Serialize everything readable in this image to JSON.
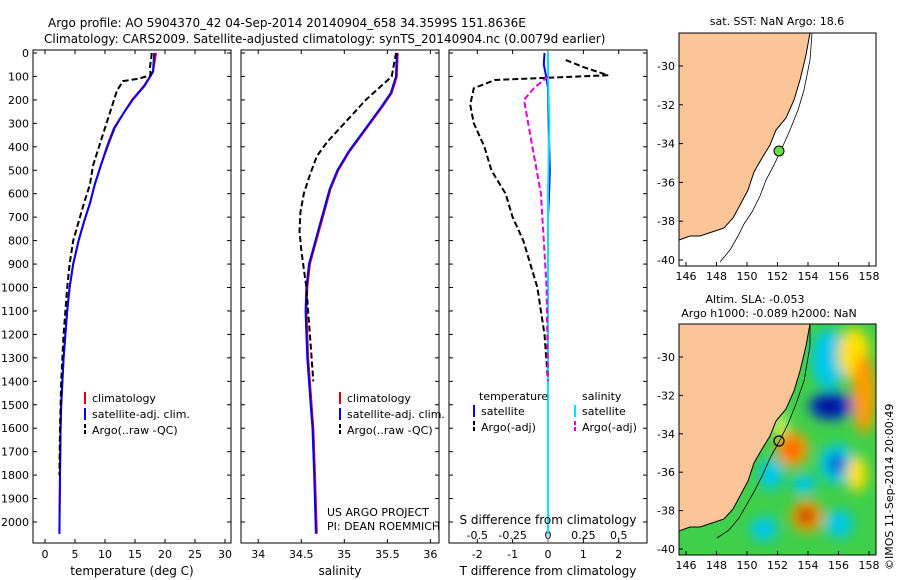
{
  "header": {
    "line1": "Argo profile: AO 5904370_42 04-Sep-2014 20140904_658 34.3599S 151.8636E",
    "line2": "Climatology: CARS2009. Satellite-adjusted climatology: synTS_20140904.nc (0.0079d earlier)"
  },
  "colors": {
    "climatology": "#e00000",
    "satellite": "#0000ff",
    "argo": "#000000",
    "salinity_sat": "#00e5ff",
    "salinity_argo": "#e000e0",
    "land": "#fbc597",
    "ocean": "#ffffff"
  },
  "depth_axis": {
    "ticks": [
      "0",
      "100",
      "200",
      "300",
      "400",
      "500",
      "600",
      "700",
      "800",
      "900",
      "1000",
      "1100",
      "1200",
      "1300",
      "1400",
      "1500",
      "1600",
      "1700",
      "1800",
      "1900",
      "2000"
    ]
  },
  "panels": {
    "temperature": {
      "xlabel": "temperature (deg C)",
      "ticks": [
        "0",
        "5",
        "10",
        "15",
        "20",
        "25",
        "30"
      ],
      "legend": [
        "climatology",
        "satellite-adj. clim.",
        "Argo(..raw -QC)"
      ]
    },
    "salinity": {
      "xlabel": "salinity",
      "ticks": [
        "34",
        "34.5",
        "35",
        "35.5",
        "36"
      ],
      "legend": [
        "climatology",
        "satellite-adj. clim.",
        "Argo(..raw -QC)"
      ],
      "credit1": "US ARGO PROJECT",
      "credit2": "PI: DEAN ROEMMICH"
    },
    "difference": {
      "xlabel": "T difference from climatology",
      "toplabel": "S difference from climatology",
      "ticks_t": [
        "-2",
        "-1",
        "0",
        "1",
        "2"
      ],
      "ticks_s": [
        "-0.5",
        "-0.25",
        "0",
        "0.25",
        "0.5"
      ],
      "legend_t_title": "temperature",
      "legend_t": [
        "satellite",
        "Argo(-adj)"
      ],
      "legend_s_title": "salinity",
      "legend_s": [
        "satellite",
        "Argo(-adj)"
      ]
    }
  },
  "maps": {
    "sst_title": "sat. SST: NaN Argo: 18.6",
    "sla_title1": "Altim. SLA: -0.053",
    "sla_title2": "Argo h1000: -0.089 h2000: NaN",
    "lon_ticks": [
      "146",
      "148",
      "150",
      "152",
      "154",
      "156",
      "158"
    ],
    "lat_ticks": [
      "-30",
      "-32",
      "-34",
      "-36",
      "-38",
      "-40"
    ],
    "stamp": "©IMOS 11-Sep-2014 20:00:49"
  },
  "chart_data": [
    {
      "type": "line",
      "title": "",
      "xlabel": "temperature (deg C)",
      "ylabel": "",
      "xlim": [
        -2,
        31
      ],
      "ylim": [
        2060,
        0
      ],
      "series": [
        {
          "name": "climatology",
          "color": "#e00000",
          "x": [
            18.5,
            18,
            16.5,
            14.5,
            13,
            11.5,
            10.3,
            9.3,
            8.3,
            7.5,
            6.5,
            5.6,
            4.7,
            4.1,
            3.7,
            3.4,
            3.1,
            2.9,
            2.7,
            2.6,
            2.5,
            2.4
          ],
          "y": [
            0,
            80,
            140,
            200,
            260,
            320,
            400,
            480,
            560,
            640,
            720,
            800,
            900,
            1000,
            1100,
            1200,
            1300,
            1400,
            1500,
            1600,
            1800,
            2050
          ]
        },
        {
          "name": "satellite-adj. clim.",
          "color": "#0000ff",
          "x": [
            18.2,
            18,
            16.6,
            14.6,
            13,
            11.6,
            10.4,
            9.3,
            8.3,
            7.5,
            6.5,
            5.6,
            4.7,
            4.1,
            3.7,
            3.4,
            3.1,
            2.9,
            2.7,
            2.6,
            2.5,
            2.4
          ],
          "y": [
            0,
            80,
            140,
            200,
            260,
            320,
            400,
            480,
            560,
            640,
            720,
            800,
            900,
            1000,
            1100,
            1200,
            1300,
            1400,
            1500,
            1600,
            1800,
            2050
          ]
        },
        {
          "name": "Argo(..raw -QC)",
          "color": "#000000",
          "dashed": true,
          "x": [
            17.8,
            17.5,
            17.6,
            15.5,
            13,
            12,
            11,
            10,
            9,
            8,
            7.5,
            6.5,
            5.6,
            4.7,
            4.1,
            3.7,
            3.4,
            3.1,
            2.9,
            2.7,
            2.6,
            2.5,
            2.4
          ],
          "y": [
            0,
            60,
            95,
            110,
            120,
            160,
            240,
            320,
            400,
            480,
            560,
            640,
            720,
            800,
            900,
            1000,
            1100,
            1200,
            1300,
            1400,
            1500,
            1600,
            1800
          ]
        }
      ]
    },
    {
      "type": "line",
      "title": "",
      "xlabel": "salinity",
      "ylabel": "",
      "xlim": [
        33.8,
        36.1
      ],
      "ylim": [
        2060,
        0
      ],
      "series": [
        {
          "name": "climatology",
          "color": "#e00000",
          "x": [
            35.62,
            35.61,
            35.55,
            35.44,
            35.32,
            35.2,
            35.06,
            34.93,
            34.84,
            34.78,
            34.72,
            34.66,
            34.6,
            34.57,
            34.56,
            34.57,
            34.58,
            34.6,
            34.62,
            34.64,
            34.66,
            34.68
          ],
          "y": [
            0,
            100,
            170,
            230,
            290,
            350,
            420,
            500,
            580,
            660,
            740,
            820,
            900,
            1000,
            1100,
            1200,
            1300,
            1400,
            1500,
            1600,
            1800,
            2050
          ]
        },
        {
          "name": "satellite-adj. clim.",
          "color": "#0000ff",
          "x": [
            35.61,
            35.6,
            35.54,
            35.43,
            35.31,
            35.19,
            35.05,
            34.92,
            34.83,
            34.77,
            34.71,
            34.65,
            34.59,
            34.56,
            34.55,
            34.56,
            34.57,
            34.59,
            34.61,
            34.63,
            34.65,
            34.67
          ],
          "y": [
            0,
            100,
            170,
            230,
            290,
            350,
            420,
            500,
            580,
            660,
            740,
            820,
            900,
            1000,
            1100,
            1200,
            1300,
            1400,
            1500,
            1600,
            1800,
            2050
          ]
        },
        {
          "name": "Argo(..raw -QC)",
          "color": "#000000",
          "dashed": true,
          "x": [
            35.6,
            35.55,
            35.4,
            35.25,
            35.1,
            34.95,
            34.8,
            34.68,
            34.6,
            34.53,
            34.49,
            34.48,
            34.5,
            34.53,
            34.56,
            34.58,
            34.6,
            34.62,
            34.64
          ],
          "y": [
            0,
            100,
            150,
            200,
            260,
            320,
            380,
            440,
            520,
            600,
            680,
            760,
            840,
            920,
            1000,
            1100,
            1200,
            1300,
            1400
          ]
        }
      ]
    },
    {
      "type": "line",
      "title": "",
      "xlabel": "T difference from climatology",
      "ylabel": "",
      "xlim": [
        -2.8,
        2.8
      ],
      "ylim": [
        2060,
        0
      ],
      "series": [
        {
          "name": "temperature satellite",
          "color": "#0000ff",
          "x": [
            -0.1,
            -0.12,
            -0.05,
            0,
            0.02,
            0.05,
            0.03,
            0,
            0,
            0,
            0,
            0
          ],
          "y": [
            0,
            50,
            100,
            150,
            300,
            500,
            600,
            700,
            900,
            1200,
            1600,
            2050
          ]
        },
        {
          "name": "temperature Argo(-adj)",
          "color": "#000000",
          "dashed": true,
          "x": [
            0.5,
            1,
            1.7,
            -1.5,
            -2.1,
            -2.2,
            -2.1,
            -1.8,
            -1.6,
            -1.2,
            -1,
            -0.7,
            -0.5,
            -0.3,
            -0.2,
            -0.1,
            0
          ],
          "y": [
            30,
            60,
            95,
            115,
            150,
            220,
            300,
            400,
            500,
            600,
            700,
            800,
            900,
            1000,
            1100,
            1200,
            1400
          ]
        },
        {
          "name": "salinity satellite",
          "color": "#00e5ff",
          "x": [
            0,
            0,
            0.01,
            0,
            0,
            0,
            0,
            0
          ],
          "y": [
            0,
            100,
            300,
            600,
            1000,
            1400,
            1800,
            2050
          ]
        },
        {
          "name": "salinity Argo(-adj)",
          "color": "#e000e0",
          "dashed": true,
          "x": [
            0,
            -0.1,
            -0.17,
            -0.14,
            -0.11,
            -0.08,
            -0.05,
            -0.03,
            -0.01,
            0
          ],
          "y": [
            100,
            150,
            200,
            300,
            400,
            500,
            600,
            800,
            1000,
            1400
          ]
        }
      ]
    }
  ]
}
